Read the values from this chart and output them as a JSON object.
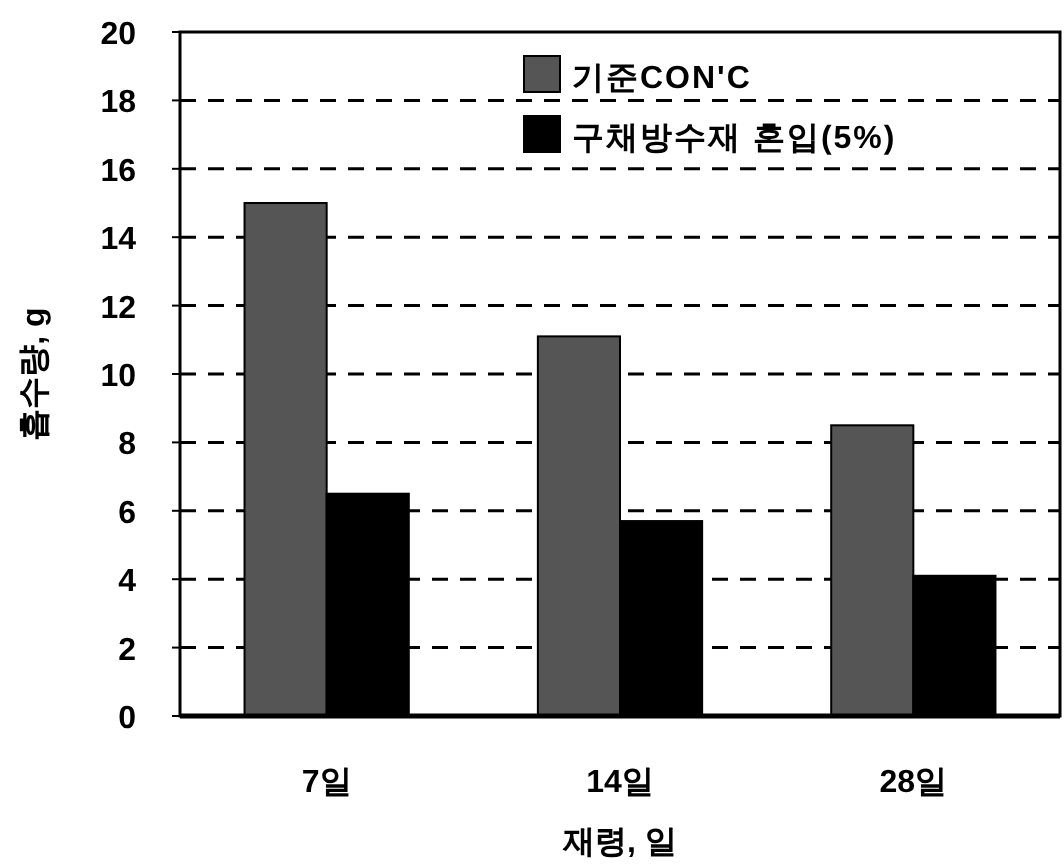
{
  "chart_data": {
    "type": "bar",
    "xlabel": "재령, 일",
    "ylabel": "흡수량, g",
    "categories": [
      "7일",
      "14일",
      "28일"
    ],
    "series": [
      {
        "name": "기준CON'C",
        "color": "#555555",
        "values": [
          15,
          11.1,
          8.5
        ]
      },
      {
        "name": "구채방수재 혼입(5%)",
        "color": "#000000",
        "values": [
          6.5,
          5.7,
          4.1
        ]
      }
    ],
    "ylim": [
      0,
      20
    ],
    "yticks": [
      0,
      2,
      4,
      6,
      8,
      10,
      12,
      14,
      16,
      18,
      20
    ],
    "grid": "y",
    "legend": "top right"
  }
}
